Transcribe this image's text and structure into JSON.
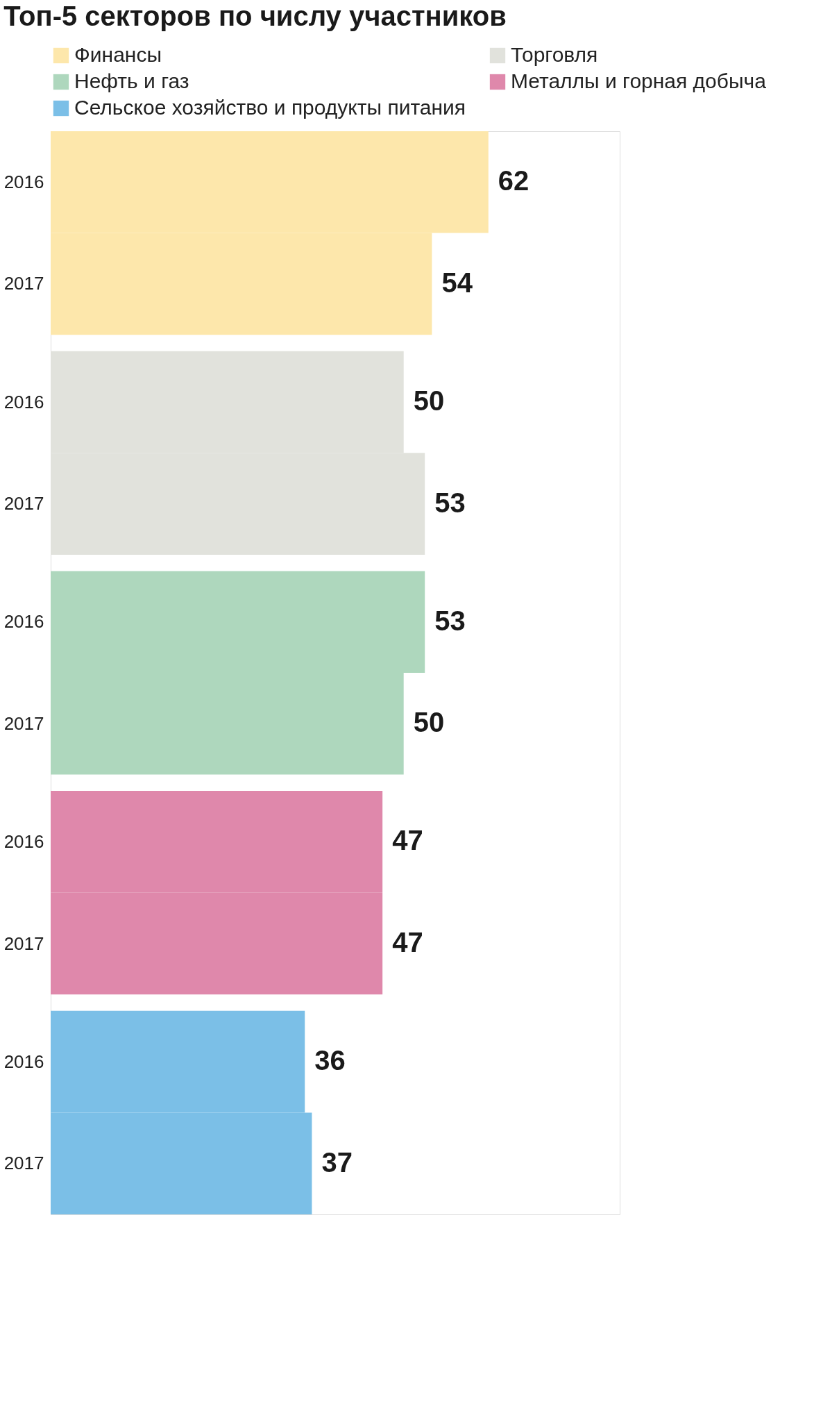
{
  "chart_data": {
    "type": "bar",
    "orientation": "horizontal",
    "title": "Топ-5 секторов по числу участников",
    "categories": [
      "2016",
      "2017",
      "2016",
      "2017",
      "2016",
      "2017",
      "2016",
      "2017",
      "2016",
      "2017"
    ],
    "series": [
      {
        "name": "Финансы",
        "color": "#fde7ab",
        "values": [
          62,
          54,
          null,
          null,
          null,
          null,
          null,
          null,
          null,
          null
        ]
      },
      {
        "name": "Торговля",
        "color": "#e1e2dc",
        "values": [
          null,
          null,
          50,
          53,
          null,
          null,
          null,
          null,
          null,
          null
        ]
      },
      {
        "name": "Нефть и газ",
        "color": "#aed7bd",
        "values": [
          null,
          null,
          null,
          null,
          53,
          50,
          null,
          null,
          null,
          null
        ]
      },
      {
        "name": "Металлы и горная добыча",
        "color": "#df88ab",
        "values": [
          null,
          null,
          null,
          null,
          null,
          null,
          47,
          47,
          null,
          null
        ]
      },
      {
        "name": "Сельское хозяйство и продукты питания",
        "color": "#7bbfe7",
        "values": [
          null,
          null,
          null,
          null,
          null,
          null,
          null,
          null,
          36,
          37
        ]
      }
    ],
    "data_labels": true,
    "tick_labels": "y",
    "legend": "top",
    "grid": false
  }
}
